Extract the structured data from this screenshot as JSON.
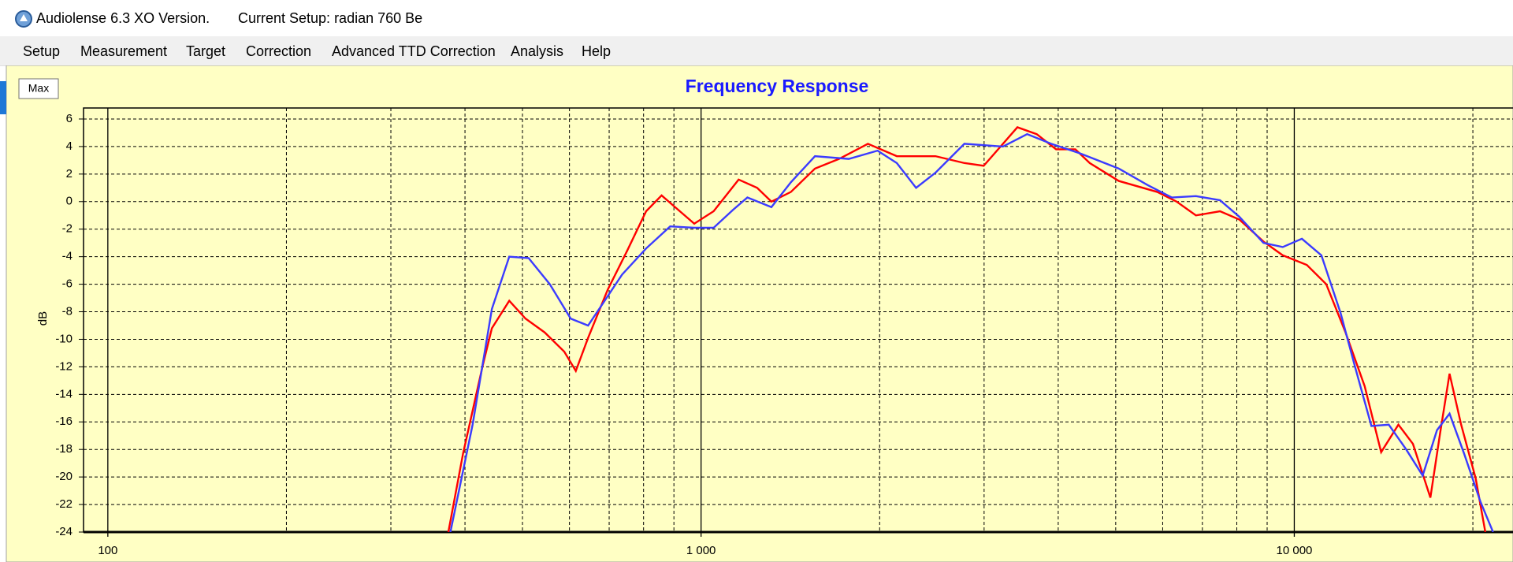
{
  "window": {
    "app_title": "Audiolense 6.3 XO Version.",
    "setup": "Current Setup: radian 760 Be"
  },
  "menu": [
    "Setup",
    "Measurement",
    "Target",
    "Correction",
    "Advanced TTD Correction",
    "Analysis",
    "Help"
  ],
  "button": "Max",
  "chart_data": {
    "type": "line",
    "title": "Frequency Response",
    "y_label": "dB",
    "x_scale": "log",
    "xlim": [
      91,
      23300
    ],
    "ylim": [
      -24,
      6.8
    ],
    "xticks": [
      100,
      {
        "value": 1000,
        "label": "1 000"
      },
      {
        "value": 10000,
        "label": "10 000"
      }
    ],
    "x_minor_grid": [
      200,
      300,
      400,
      500,
      600,
      700,
      800,
      900,
      2000,
      3000,
      4000,
      5000,
      6000,
      7000,
      8000,
      9000,
      20000
    ],
    "yticks": [
      -24,
      -22,
      -20,
      -18,
      -16,
      -14,
      -12,
      -10,
      -8,
      -6,
      -4,
      -2,
      0,
      2,
      4,
      6
    ],
    "grid": true,
    "background": "#ffffc4",
    "series": [
      {
        "color": "#ff0000",
        "x": [
          375,
          397,
          428,
          444,
          475,
          506,
          545,
          588,
          615,
          645,
          696,
          750,
          808,
          858,
          904,
          974,
          1050,
          1157,
          1243,
          1314,
          1417,
          1556,
          1708,
          1911,
          2138,
          2484,
          2779,
          2995,
          3228,
          3414,
          3680,
          3967,
          4275,
          4521,
          5060,
          5877,
          6333,
          6826,
          7496,
          8079,
          8872,
          9562,
          10500,
          11320,
          12200,
          13140,
          14010,
          14980,
          15850,
          16960,
          17600,
          18270,
          19110,
          20220,
          20990
        ],
        "values": [
          -24,
          -18.3,
          -12,
          -9.2,
          -7.2,
          -8.5,
          -9.5,
          -10.9,
          -12.3,
          -9.9,
          -6.4,
          -3.6,
          -0.7,
          0.45,
          -0.4,
          -1.6,
          -0.7,
          1.6,
          1.0,
          0.0,
          0.7,
          2.4,
          3.1,
          4.2,
          3.3,
          3.3,
          2.8,
          2.6,
          4.2,
          5.4,
          4.9,
          3.8,
          3.8,
          2.8,
          1.5,
          0.7,
          0.0,
          -1.0,
          -0.7,
          -1.3,
          -2.9,
          -3.9,
          -4.6,
          -6.0,
          -9.5,
          -13.4,
          -18.2,
          -16.2,
          -17.6,
          -21.5,
          -16.9,
          -12.5,
          -16.2,
          -20.1,
          -24
        ]
      },
      {
        "color": "#3b3bff",
        "x": [
          378,
          412,
          444,
          475,
          512,
          556,
          603,
          645,
          683,
          736,
          808,
          887,
          974,
          1050,
          1132,
          1197,
          1314,
          1417,
          1556,
          1774,
          1984,
          2138,
          2304,
          2484,
          2779,
          3228,
          3545,
          3892,
          4355,
          5060,
          5660,
          6217,
          6826,
          7496,
          8079,
          8872,
          9562,
          10300,
          11110,
          11970,
          12660,
          13490,
          14430,
          15440,
          16460,
          17400,
          18270,
          19330,
          20600,
          21630
        ],
        "values": [
          -24,
          -16.2,
          -7.8,
          -4.0,
          -4.1,
          -6.0,
          -8.5,
          -9.0,
          -7.4,
          -5.3,
          -3.4,
          -1.8,
          -1.9,
          -1.9,
          -0.6,
          0.3,
          -0.4,
          1.4,
          3.3,
          3.1,
          3.7,
          2.8,
          1.0,
          2.1,
          4.2,
          4.0,
          4.9,
          4.2,
          3.5,
          2.4,
          1.2,
          0.3,
          0.4,
          0.1,
          -1.1,
          -3.0,
          -3.3,
          -2.7,
          -3.9,
          -8.1,
          -12.0,
          -16.3,
          -16.2,
          -18.0,
          -19.9,
          -16.6,
          -15.4,
          -18.3,
          -21.8,
          -24
        ]
      }
    ]
  }
}
